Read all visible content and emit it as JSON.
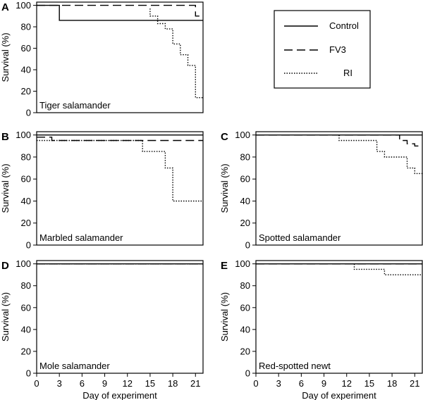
{
  "figure": {
    "x_axis_label": "Day of experiment",
    "y_axis_label": "Survival (%)"
  },
  "legend": {
    "entries": [
      {
        "label": "Control",
        "style": "solid"
      },
      {
        "label": "FV3",
        "style": "dashed"
      },
      {
        "label": "RI",
        "style": "dotted"
      }
    ]
  },
  "chart_data": [
    {
      "type": "line",
      "panel": "A",
      "title": "Tiger salamander",
      "xlabel": "",
      "ylabel": "Survival (%)",
      "xlim": [
        0,
        22
      ],
      "ylim": [
        0,
        103
      ],
      "yticks": [
        0,
        20,
        40,
        60,
        80,
        100
      ],
      "xticks": [],
      "series": [
        {
          "name": "Control",
          "x": [
            0,
            3,
            3,
            22
          ],
          "y": [
            100,
            100,
            86,
            86
          ]
        },
        {
          "name": "FV3",
          "x": [
            0,
            21,
            21,
            22
          ],
          "y": [
            100,
            100,
            90,
            90
          ]
        },
        {
          "name": "RI",
          "x": [
            15,
            15,
            16,
            16,
            17,
            17,
            18,
            18,
            19,
            19,
            20,
            20,
            21,
            21,
            22
          ],
          "y": [
            97,
            90,
            90,
            83,
            83,
            78,
            78,
            64,
            64,
            54,
            54,
            44,
            44,
            14,
            14
          ]
        }
      ]
    },
    {
      "type": "line",
      "panel": "B",
      "title": "Marbled salamander",
      "xlabel": "",
      "ylabel": "Survival (%)",
      "xlim": [
        0,
        22
      ],
      "ylim": [
        0,
        103
      ],
      "yticks": [
        0,
        20,
        40,
        60,
        80,
        100
      ],
      "xticks": [],
      "series": [
        {
          "name": "Control",
          "x": [
            0,
            22
          ],
          "y": [
            100,
            100
          ]
        },
        {
          "name": "FV3",
          "x": [
            0,
            2,
            2,
            22
          ],
          "y": [
            98,
            98,
            95,
            95
          ]
        },
        {
          "name": "RI",
          "x": [
            0,
            14,
            14,
            17,
            17,
            18,
            18,
            22
          ],
          "y": [
            95,
            95,
            85,
            85,
            70,
            70,
            40,
            40
          ]
        }
      ]
    },
    {
      "type": "line",
      "panel": "C",
      "title": "Spotted salamander",
      "xlabel": "",
      "ylabel": "Survival (%)",
      "xlim": [
        0,
        22
      ],
      "ylim": [
        0,
        103
      ],
      "yticks": [
        0,
        20,
        40,
        60,
        80,
        100
      ],
      "xticks": [],
      "series": [
        {
          "name": "Control",
          "x": [
            0,
            22
          ],
          "y": [
            100,
            100
          ]
        },
        {
          "name": "FV3",
          "x": [
            0,
            19,
            19,
            20,
            20,
            21,
            21,
            22
          ],
          "y": [
            100,
            100,
            95,
            95,
            92,
            92,
            90,
            90
          ]
        },
        {
          "name": "RI",
          "x": [
            11,
            11,
            16,
            16,
            17,
            17,
            20,
            20,
            21,
            21,
            22
          ],
          "y": [
            100,
            95,
            95,
            85,
            85,
            80,
            80,
            70,
            70,
            65,
            65
          ]
        }
      ]
    },
    {
      "type": "line",
      "panel": "D",
      "title": "Mole salamander",
      "xlabel": "Day of experiment",
      "ylabel": "Survival (%)",
      "xlim": [
        0,
        22
      ],
      "ylim": [
        0,
        103
      ],
      "yticks": [
        0,
        20,
        40,
        60,
        80,
        100
      ],
      "xticks": [
        0,
        3,
        6,
        9,
        12,
        15,
        18,
        21
      ],
      "series": [
        {
          "name": "Control",
          "x": [
            0,
            22
          ],
          "y": [
            100,
            100
          ]
        },
        {
          "name": "FV3",
          "x": [
            0,
            22
          ],
          "y": [
            100,
            100
          ]
        },
        {
          "name": "RI",
          "x": [
            0,
            22
          ],
          "y": [
            100,
            100
          ]
        }
      ]
    },
    {
      "type": "line",
      "panel": "E",
      "title": "Red-spotted newt",
      "xlabel": "Day of experiment",
      "ylabel": "Survival (%)",
      "xlim": [
        0,
        22
      ],
      "ylim": [
        0,
        103
      ],
      "yticks": [
        0,
        20,
        40,
        60,
        80,
        100
      ],
      "xticks": [
        0,
        3,
        6,
        9,
        12,
        15,
        18,
        21
      ],
      "series": [
        {
          "name": "Control",
          "x": [
            0,
            22
          ],
          "y": [
            100,
            100
          ]
        },
        {
          "name": "FV3",
          "x": [
            0,
            22
          ],
          "y": [
            100,
            100
          ]
        },
        {
          "name": "RI",
          "x": [
            13,
            13,
            17,
            17,
            22
          ],
          "y": [
            100,
            95,
            95,
            90,
            90
          ]
        }
      ]
    }
  ]
}
